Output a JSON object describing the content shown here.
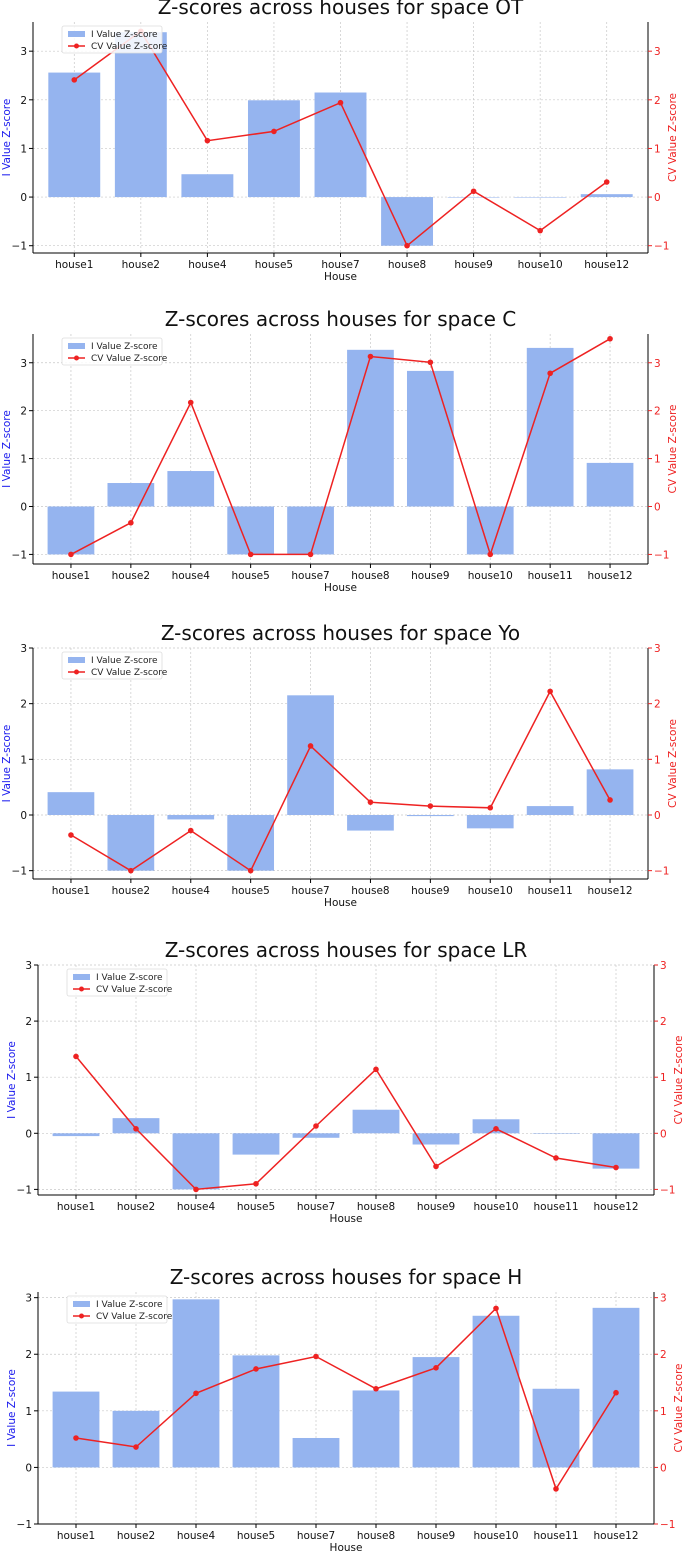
{
  "colors": {
    "bar": "#95b4ef",
    "line": "#ee2222",
    "left_axis_label": "#1a1aee",
    "right_axis": "#ee2222",
    "grid": "#c8c8c8"
  },
  "chart_data": [
    {
      "type": "bar",
      "title": "Z-scores across houses for space OT",
      "xlabel": "House",
      "ylabel": "I Value Z-score",
      "y2label": "CV Value Z-score",
      "categories": [
        "house1",
        "house2",
        "house4",
        "house5",
        "house7",
        "house8",
        "house9",
        "house10",
        "house12"
      ],
      "ylim": [
        -1.15,
        3.6
      ],
      "yticks": [
        -1,
        0,
        1,
        2,
        3
      ],
      "legend": "top-left",
      "grid": true,
      "series": [
        {
          "name": "I Value Z-score",
          "kind": "bar",
          "axis": "left",
          "values": [
            2.56,
            3.39,
            0.47,
            1.99,
            2.15,
            -1.0,
            0.0,
            0.0,
            0.06
          ]
        },
        {
          "name": "CV Value Z-score",
          "kind": "line",
          "axis": "right",
          "values": [
            2.41,
            3.41,
            1.16,
            1.35,
            1.94,
            -1.0,
            0.12,
            -0.69,
            0.31
          ]
        }
      ]
    },
    {
      "type": "bar",
      "title": "Z-scores across houses for space C",
      "xlabel": "House",
      "ylabel": "I Value Z-score",
      "y2label": "CV Value Z-score",
      "categories": [
        "house1",
        "house2",
        "house4",
        "house5",
        "house7",
        "house8",
        "house9",
        "house10",
        "house11",
        "house12"
      ],
      "ylim": [
        -1.2,
        3.6
      ],
      "yticks": [
        -1,
        0,
        1,
        2,
        3
      ],
      "legend": "top-left",
      "grid": true,
      "series": [
        {
          "name": "I Value Z-score",
          "kind": "bar",
          "axis": "left",
          "values": [
            -1.0,
            0.49,
            0.74,
            -1.0,
            -1.0,
            3.27,
            2.83,
            -1.0,
            3.31,
            0.91
          ]
        },
        {
          "name": "CV Value Z-score",
          "kind": "line",
          "axis": "right",
          "values": [
            -1.0,
            -0.34,
            2.17,
            -1.0,
            -1.0,
            3.13,
            3.01,
            -1.0,
            2.78,
            3.5
          ]
        }
      ]
    },
    {
      "type": "bar",
      "title": "Z-scores across houses for space Yo",
      "xlabel": "House",
      "ylabel": "I Value Z-score",
      "y2label": "CV Value Z-score",
      "categories": [
        "house1",
        "house2",
        "house4",
        "house5",
        "house7",
        "house8",
        "house9",
        "house10",
        "house11",
        "house12"
      ],
      "ylim": [
        -1.15,
        3.0
      ],
      "yticks": [
        -1,
        0,
        1,
        2,
        3
      ],
      "legend": "top-left",
      "grid": true,
      "series": [
        {
          "name": "I Value Z-score",
          "kind": "bar",
          "axis": "left",
          "values": [
            0.41,
            -1.0,
            -0.08,
            -1.0,
            2.15,
            -0.28,
            -0.02,
            -0.24,
            0.16,
            0.82
          ]
        },
        {
          "name": "CV Value Z-score",
          "kind": "line",
          "axis": "right",
          "values": [
            -0.36,
            -1.0,
            -0.28,
            -1.0,
            1.24,
            0.23,
            0.16,
            0.13,
            2.22,
            0.27
          ]
        }
      ]
    },
    {
      "type": "bar",
      "title": "Z-scores across houses for space LR",
      "xlabel": "House",
      "ylabel": "I Value Z-score",
      "y2label": "CV Value Z-score",
      "categories": [
        "house1",
        "house2",
        "house4",
        "house5",
        "house7",
        "house8",
        "house9",
        "house10",
        "house11",
        "house12"
      ],
      "ylim": [
        -1.1,
        3.0
      ],
      "yticks": [
        -1,
        0,
        1,
        2,
        3
      ],
      "legend": "top-left",
      "grid": true,
      "series": [
        {
          "name": "I Value Z-score",
          "kind": "bar",
          "axis": "left",
          "values": [
            -0.05,
            0.27,
            -1.0,
            -0.38,
            -0.08,
            0.42,
            -0.2,
            0.25,
            0.0,
            -0.63
          ]
        },
        {
          "name": "CV Value Z-score",
          "kind": "line",
          "axis": "right",
          "values": [
            1.37,
            0.08,
            -1.0,
            -0.9,
            0.13,
            1.14,
            -0.59,
            0.08,
            -0.44,
            -0.61
          ]
        }
      ]
    },
    {
      "type": "bar",
      "title": "Z-scores across houses for space H",
      "xlabel": "House",
      "ylabel": "I Value Z-score",
      "y2label": "CV Value Z-score",
      "categories": [
        "house1",
        "house2",
        "house4",
        "house5",
        "house7",
        "house8",
        "house9",
        "house10",
        "house11",
        "house12"
      ],
      "ylim": [
        -1.0,
        3.1
      ],
      "yticks": [
        -1,
        0,
        1,
        2,
        3
      ],
      "legend": "top-left",
      "grid": true,
      "series": [
        {
          "name": "I Value Z-score",
          "kind": "bar",
          "axis": "left",
          "values": [
            1.34,
            1.0,
            2.97,
            1.98,
            0.52,
            1.36,
            1.95,
            2.68,
            1.39,
            2.82
          ]
        },
        {
          "name": "CV Value Z-score",
          "kind": "line",
          "axis": "right",
          "values": [
            0.52,
            0.36,
            1.31,
            1.74,
            1.96,
            1.39,
            1.76,
            2.81,
            -0.38,
            1.32
          ]
        }
      ]
    }
  ]
}
